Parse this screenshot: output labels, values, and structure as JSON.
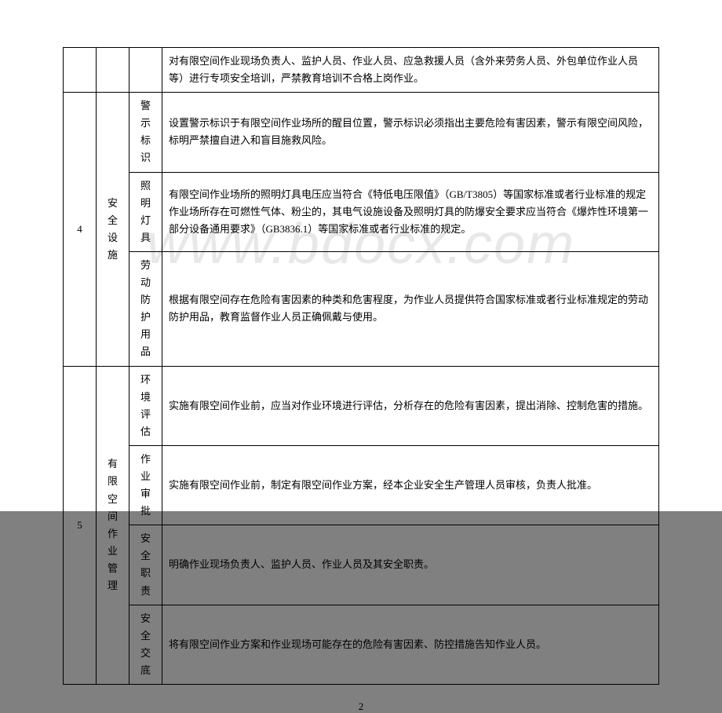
{
  "watermark": "www.bdocx.com",
  "page_number": "2",
  "table": {
    "columns": [
      "num",
      "cat",
      "sub",
      "desc"
    ],
    "col_widths": {
      "num": 42,
      "cat": 42,
      "sub": 42
    },
    "rows": [
      {
        "cells": [
          {
            "text": "",
            "rowspan": 1,
            "class": "center col-num"
          },
          {
            "text": "",
            "rowspan": 1,
            "class": "center col-cat"
          },
          {
            "text": "",
            "rowspan": 1,
            "class": "center col-sub"
          },
          {
            "text": "对有限空间作业现场负责人、监护人员、作业人员、应急救援人员（含外来劳务人员、外包单位作业人员等）进行专项安全培训，严禁教育培训不合格上岗作业。",
            "class": "col-desc"
          }
        ]
      },
      {
        "cells": [
          {
            "text": "4",
            "rowspan": 3,
            "class": "center col-num"
          },
          {
            "text": "安全设施",
            "rowspan": 3,
            "class": "center col-cat"
          },
          {
            "text": "警示标识",
            "class": "center col-sub"
          },
          {
            "text": "设置警示标识于有限空间作业场所的醒目位置，警示标识必须指出主要危险有害因素，警示有限空间风险，标明严禁擅自进入和盲目施救风险。",
            "class": "col-desc"
          }
        ]
      },
      {
        "cells": [
          {
            "text": "照明灯具",
            "class": "center col-sub"
          },
          {
            "text": "有限空间作业场所的照明灯具电压应当符合《特低电压限值》（GB/T3805）等国家标准或者行业标准的规定 作业场所存在可燃性气体、粉尘的，其电气设施设备及照明灯具的防爆安全要求应当符合《爆炸性环境第一部分设备通用要求》（GB3836.1）等国家标准或者行业标准的规定。",
            "class": "col-desc"
          }
        ]
      },
      {
        "cells": [
          {
            "text": "劳动防护用品",
            "class": "center col-sub"
          },
          {
            "text": "根据有限空间存在危险有害因素的种类和危害程度，为作业人员提供符合国家标准或者行业标准规定的劳动防护用品，教育监督作业人员正确佩戴与使用。",
            "class": "col-desc"
          }
        ]
      },
      {
        "cells": [
          {
            "text": "5",
            "rowspan": 4,
            "class": "center col-num"
          },
          {
            "text": "有限空间作业管理",
            "rowspan": 4,
            "class": "center col-cat"
          },
          {
            "text": "环境评估",
            "class": "center col-sub"
          },
          {
            "text": "实施有限空间作业前，应当对作业环境进行评估，分析存在的危险有害因素，提出消除、控制危害的措施。",
            "class": "col-desc"
          }
        ]
      },
      {
        "cells": [
          {
            "text": "作业审批",
            "class": "center col-sub"
          },
          {
            "text": "实施有限空间作业前，制定有限空间作业方案，经本企业安全生产管理人员审核，负责人批准。",
            "class": "col-desc"
          }
        ]
      },
      {
        "cells": [
          {
            "text": "安全职责",
            "class": "center col-sub"
          },
          {
            "text": "明确作业现场负责人、监护人员、作业人员及其安全职责。",
            "class": "col-desc"
          }
        ]
      },
      {
        "cells": [
          {
            "text": "安全交底",
            "class": "center col-sub"
          },
          {
            "text": "将有限空间作业方案和作业现场可能存在的危险有害因素、防控措施告知作业人员。",
            "class": "col-desc"
          }
        ]
      }
    ]
  }
}
